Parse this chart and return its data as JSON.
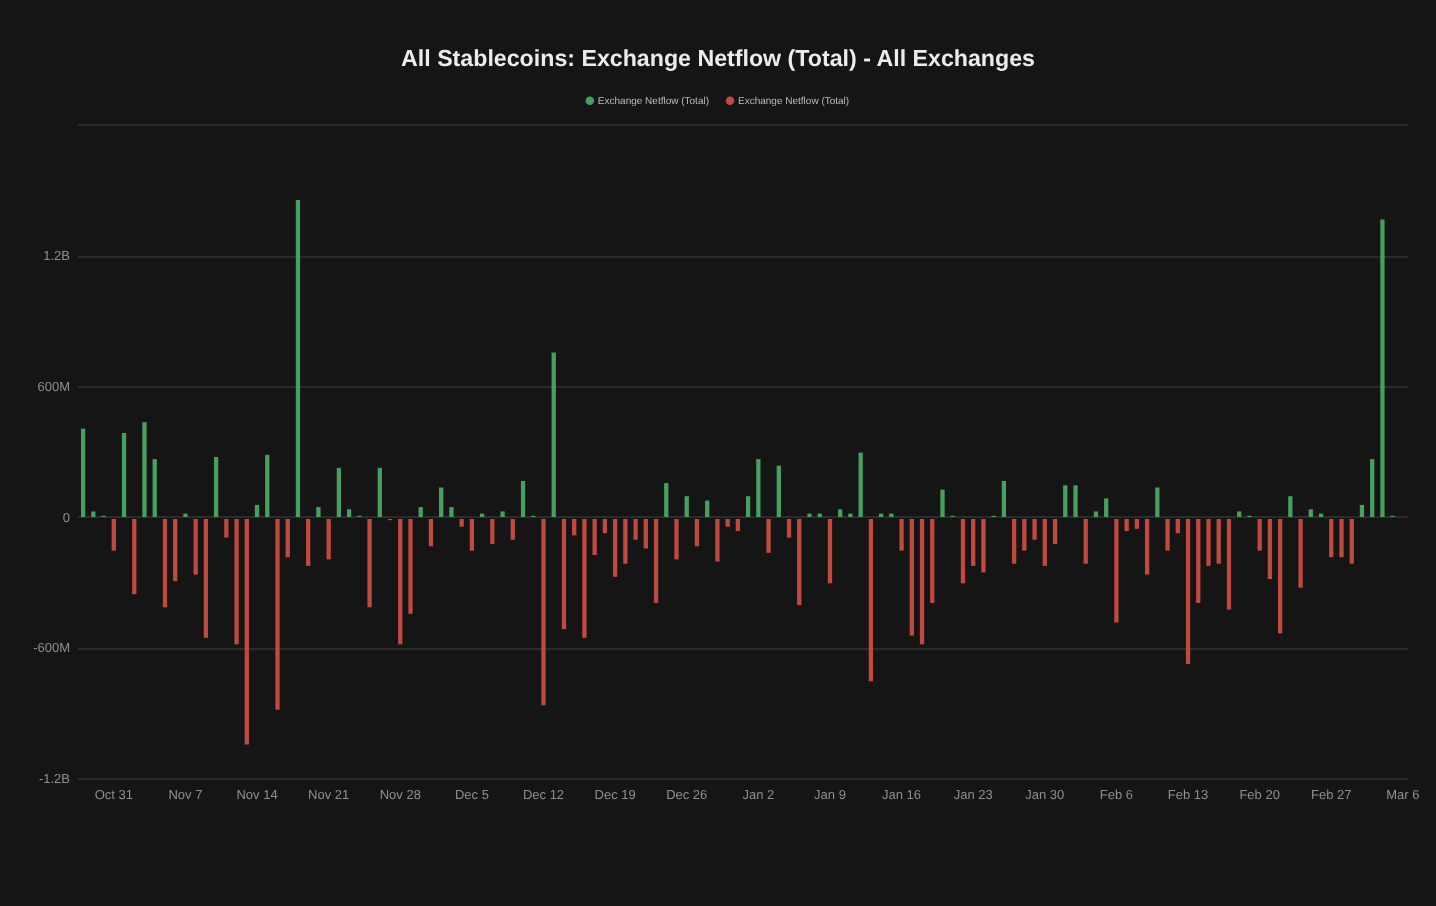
{
  "chart_data": {
    "type": "bar",
    "title": "All Stablecoins: Exchange Netflow (Total) - All Exchanges",
    "categories": [
      null,
      null,
      null,
      "Oct 31",
      null,
      null,
      null,
      null,
      null,
      null,
      "Nov 7",
      null,
      null,
      null,
      null,
      null,
      null,
      "Nov 14",
      null,
      null,
      null,
      null,
      null,
      null,
      "Nov 21",
      null,
      null,
      null,
      null,
      null,
      null,
      "Nov 28",
      null,
      null,
      null,
      null,
      null,
      null,
      "Dec 5",
      null,
      null,
      null,
      null,
      null,
      null,
      "Dec 12",
      null,
      null,
      null,
      null,
      null,
      null,
      "Dec 19",
      null,
      null,
      null,
      null,
      null,
      null,
      "Dec 26",
      null,
      null,
      null,
      null,
      null,
      null,
      "Jan 2",
      null,
      null,
      null,
      null,
      null,
      null,
      "Jan 9",
      null,
      null,
      null,
      null,
      null,
      null,
      "Jan 16",
      null,
      null,
      null,
      null,
      null,
      null,
      "Jan 23",
      null,
      null,
      null,
      null,
      null,
      null,
      "Jan 30",
      null,
      null,
      null,
      null,
      null,
      null,
      "Feb 6",
      null,
      null,
      null,
      null,
      null,
      null,
      "Feb 13",
      null,
      null,
      null,
      null,
      null,
      null,
      "Feb 20",
      null,
      null,
      null,
      null,
      null,
      null,
      "Feb 27",
      null,
      null,
      null,
      null,
      null,
      null,
      "Mar 6"
    ],
    "series": [
      {
        "name": "Exchange Netflow (Total)",
        "color": "#47a060",
        "values": [
          410000000,
          30000000,
          10000000,
          null,
          390000000,
          null,
          440000000,
          270000000,
          null,
          null,
          20000000,
          null,
          null,
          280000000,
          null,
          null,
          null,
          60000000,
          290000000,
          null,
          null,
          1460000000,
          null,
          50000000,
          null,
          230000000,
          40000000,
          10000000,
          null,
          230000000,
          null,
          null,
          null,
          50000000,
          null,
          140000000,
          50000000,
          null,
          null,
          20000000,
          null,
          30000000,
          null,
          170000000,
          10000000,
          null,
          760000000,
          null,
          null,
          null,
          null,
          null,
          null,
          null,
          null,
          null,
          null,
          160000000,
          null,
          100000000,
          null,
          80000000,
          null,
          null,
          null,
          100000000,
          270000000,
          null,
          240000000,
          null,
          null,
          20000000,
          20000000,
          null,
          40000000,
          20000000,
          300000000,
          null,
          20000000,
          20000000,
          null,
          null,
          null,
          null,
          130000000,
          10000000,
          null,
          null,
          null,
          10000000,
          170000000,
          null,
          null,
          null,
          null,
          null,
          150000000,
          150000000,
          null,
          30000000,
          90000000,
          null,
          null,
          null,
          null,
          140000000,
          null,
          null,
          null,
          null,
          null,
          null,
          null,
          30000000,
          10000000,
          null,
          null,
          null,
          100000000,
          null,
          40000000,
          20000000,
          null,
          null,
          null,
          60000000,
          270000000,
          1370000000,
          10000000,
          null
        ]
      },
      {
        "name": "Exchange Netflow (Total)",
        "color": "#c04a3f",
        "values": [
          null,
          null,
          null,
          -150000000,
          null,
          -350000000,
          null,
          null,
          -410000000,
          -290000000,
          null,
          -260000000,
          -550000000,
          null,
          -90000000,
          -580000000,
          -1040000000,
          null,
          null,
          -880000000,
          -180000000,
          null,
          -220000000,
          null,
          -190000000,
          null,
          null,
          null,
          -410000000,
          null,
          -10000000,
          -580000000,
          -440000000,
          null,
          -130000000,
          null,
          null,
          -40000000,
          -150000000,
          null,
          -120000000,
          null,
          -100000000,
          null,
          null,
          -860000000,
          null,
          -510000000,
          -80000000,
          -550000000,
          -170000000,
          -70000000,
          -270000000,
          -210000000,
          -100000000,
          -140000000,
          -390000000,
          null,
          -190000000,
          null,
          -130000000,
          null,
          -200000000,
          -40000000,
          -60000000,
          null,
          null,
          -160000000,
          null,
          -90000000,
          -400000000,
          null,
          null,
          -300000000,
          null,
          null,
          null,
          -750000000,
          null,
          null,
          -150000000,
          -540000000,
          -580000000,
          -390000000,
          null,
          null,
          -300000000,
          -220000000,
          -250000000,
          null,
          null,
          -210000000,
          -150000000,
          -100000000,
          -220000000,
          -120000000,
          null,
          null,
          -210000000,
          null,
          null,
          -480000000,
          -60000000,
          -50000000,
          -260000000,
          null,
          -150000000,
          -70000000,
          -670000000,
          -390000000,
          -220000000,
          -210000000,
          -420000000,
          null,
          null,
          -150000000,
          -280000000,
          -530000000,
          null,
          -320000000,
          null,
          null,
          -180000000,
          -180000000,
          -210000000,
          null,
          null,
          null,
          null,
          null
        ]
      }
    ],
    "ylim": [
      -1200000000,
      1800000000
    ],
    "yticks": [
      {
        "value": -1200000000,
        "label": "-1.2B"
      },
      {
        "value": -600000000,
        "label": "-600M"
      },
      0,
      {
        "value": 600000000,
        "label": "600M"
      },
      {
        "value": 1200000000,
        "label": "1.2B"
      },
      {
        "value": 1800000000,
        "label": null
      }
    ],
    "grid": "y",
    "legend": "top"
  }
}
